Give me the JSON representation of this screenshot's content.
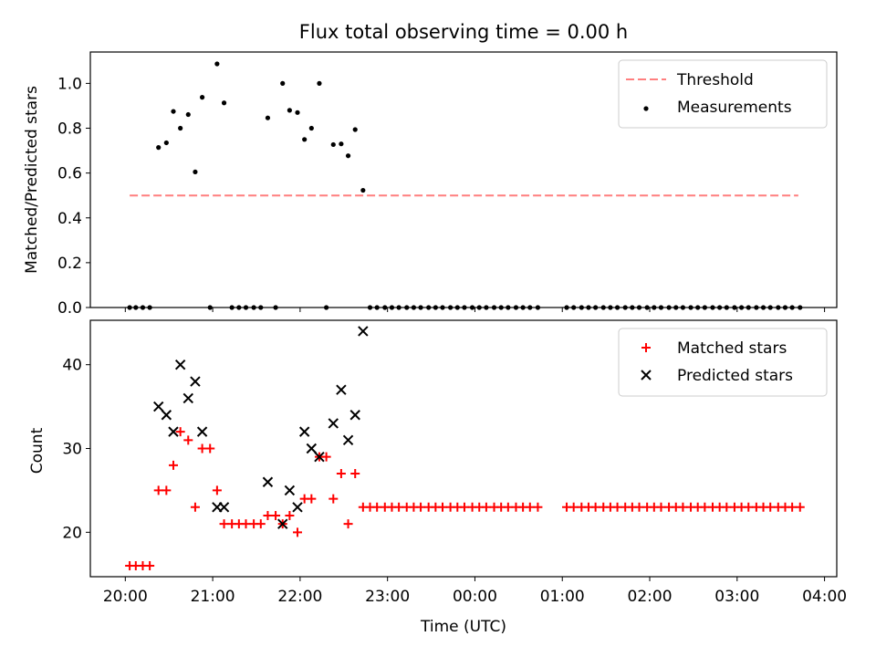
{
  "chart_data": [
    {
      "type": "scatter",
      "title": "Flux total observing time = 0.00 h",
      "xlabel": "",
      "ylabel": "Matched/Predicted stars",
      "ylim": [
        0,
        1.14
      ],
      "yticks": [
        "0.0",
        "0.2",
        "0.4",
        "0.6",
        "0.8",
        "1.0"
      ],
      "xticks": [
        "20:00",
        "21:00",
        "22:00",
        "23:00",
        "00:00",
        "01:00",
        "02:00",
        "03:00",
        "04:00"
      ],
      "xlim_hours": [
        19.6,
        28.14
      ],
      "legend_position": "upper right",
      "threshold": {
        "name": "Threshold",
        "value": 0.5,
        "x_start": 20.05,
        "x_end": 27.7,
        "color": "#ff7f7f"
      },
      "series": [
        {
          "name": "Measurements",
          "color": "#000000",
          "x": [
            20.05,
            20.12,
            20.2,
            20.28,
            20.38,
            20.47,
            20.55,
            20.63,
            20.72,
            20.8,
            20.88,
            20.97,
            21.05,
            21.13,
            21.22,
            21.3,
            21.38,
            21.47,
            21.55,
            21.63,
            21.72,
            21.8,
            21.88,
            21.97,
            22.05,
            22.13,
            22.22,
            22.3,
            22.38,
            22.47,
            22.55,
            22.63,
            22.72,
            22.8,
            22.88,
            22.97,
            23.05,
            23.13,
            23.22,
            23.3,
            23.38,
            23.47,
            23.55,
            23.63,
            23.72,
            23.8,
            23.88,
            23.97,
            24.05,
            24.13,
            24.22,
            24.3,
            24.38,
            24.47,
            24.55,
            24.63,
            24.72,
            25.05,
            25.13,
            25.22,
            25.3,
            25.38,
            25.47,
            25.55,
            25.63,
            25.72,
            25.8,
            25.88,
            25.97,
            26.05,
            26.13,
            26.22,
            26.3,
            26.38,
            26.47,
            26.55,
            26.63,
            26.72,
            26.8,
            26.88,
            26.97,
            27.05,
            27.13,
            27.22,
            27.3,
            27.38,
            27.47,
            27.55,
            27.63,
            27.72
          ],
          "y": [
            0,
            0,
            0,
            0,
            0.714,
            0.735,
            0.875,
            0.8,
            0.861,
            0.605,
            0.938,
            0,
            1.087,
            0.913,
            0,
            0,
            0,
            0,
            0,
            0.846,
            0,
            1.0,
            0.88,
            0.87,
            0.75,
            0.8,
            1.0,
            0,
            0.727,
            0.73,
            0.677,
            0.794,
            0.523,
            0,
            0,
            0,
            0,
            0,
            0,
            0,
            0,
            0,
            0,
            0,
            0,
            0,
            0,
            0,
            0,
            0,
            0,
            0,
            0,
            0,
            0,
            0,
            0,
            0,
            0,
            0,
            0,
            0,
            0,
            0,
            0,
            0,
            0,
            0,
            0,
            0,
            0,
            0,
            0,
            0,
            0,
            0,
            0,
            0,
            0,
            0,
            0,
            0,
            0,
            0,
            0,
            0,
            0,
            0,
            0,
            0
          ]
        }
      ]
    },
    {
      "type": "scatter",
      "title": "",
      "xlabel": "Time (UTC)",
      "ylabel": "Count",
      "ylim": [
        14.7,
        45.3
      ],
      "yticks": [
        "20",
        "30",
        "40"
      ],
      "xticks": [
        "20:00",
        "21:00",
        "22:00",
        "23:00",
        "00:00",
        "01:00",
        "02:00",
        "03:00",
        "04:00"
      ],
      "xlim_hours": [
        19.6,
        28.14
      ],
      "legend_position": "upper right",
      "series": [
        {
          "name": "Matched stars",
          "marker": "plus",
          "color": "#ff0000",
          "x": [
            20.05,
            20.12,
            20.2,
            20.28,
            20.38,
            20.47,
            20.55,
            20.63,
            20.72,
            20.8,
            20.88,
            20.97,
            21.05,
            21.13,
            21.22,
            21.3,
            21.38,
            21.47,
            21.55,
            21.63,
            21.72,
            21.8,
            21.88,
            21.97,
            22.05,
            22.13,
            22.22,
            22.3,
            22.38,
            22.47,
            22.55,
            22.63,
            22.72,
            22.8,
            22.88,
            22.97,
            23.05,
            23.13,
            23.22,
            23.3,
            23.38,
            23.47,
            23.55,
            23.63,
            23.72,
            23.8,
            23.88,
            23.97,
            24.05,
            24.13,
            24.22,
            24.3,
            24.38,
            24.47,
            24.55,
            24.63,
            24.72,
            25.05,
            25.13,
            25.22,
            25.3,
            25.38,
            25.47,
            25.55,
            25.63,
            25.72,
            25.8,
            25.88,
            25.97,
            26.05,
            26.13,
            26.22,
            26.3,
            26.38,
            26.47,
            26.55,
            26.63,
            26.72,
            26.8,
            26.88,
            26.97,
            27.05,
            27.13,
            27.22,
            27.3,
            27.38,
            27.47,
            27.55,
            27.63,
            27.72
          ],
          "y": [
            16,
            16,
            16,
            16,
            25,
            25,
            28,
            32,
            31,
            23,
            30,
            30,
            25,
            21,
            21,
            21,
            21,
            21,
            21,
            22,
            22,
            21,
            22,
            20,
            24,
            24,
            29,
            29,
            24,
            27,
            21,
            27,
            23,
            23,
            23,
            23,
            23,
            23,
            23,
            23,
            23,
            23,
            23,
            23,
            23,
            23,
            23,
            23,
            23,
            23,
            23,
            23,
            23,
            23,
            23,
            23,
            23,
            23,
            23,
            23,
            23,
            23,
            23,
            23,
            23,
            23,
            23,
            23,
            23,
            23,
            23,
            23,
            23,
            23,
            23,
            23,
            23,
            23,
            23,
            23,
            23,
            23,
            23,
            23,
            23,
            23,
            23,
            23,
            23,
            23
          ]
        },
        {
          "name": "Predicted stars",
          "marker": "x",
          "color": "#000000",
          "x": [
            20.38,
            20.47,
            20.55,
            20.63,
            20.72,
            20.8,
            20.88,
            21.05,
            21.13,
            21.63,
            21.8,
            21.88,
            21.97,
            22.05,
            22.13,
            22.22,
            22.38,
            22.47,
            22.55,
            22.63,
            22.72
          ],
          "y": [
            35,
            34,
            32,
            40,
            36,
            38,
            32,
            23,
            23,
            26,
            21,
            25,
            23,
            32,
            30,
            29,
            33,
            37,
            31,
            34,
            44
          ]
        }
      ]
    }
  ]
}
